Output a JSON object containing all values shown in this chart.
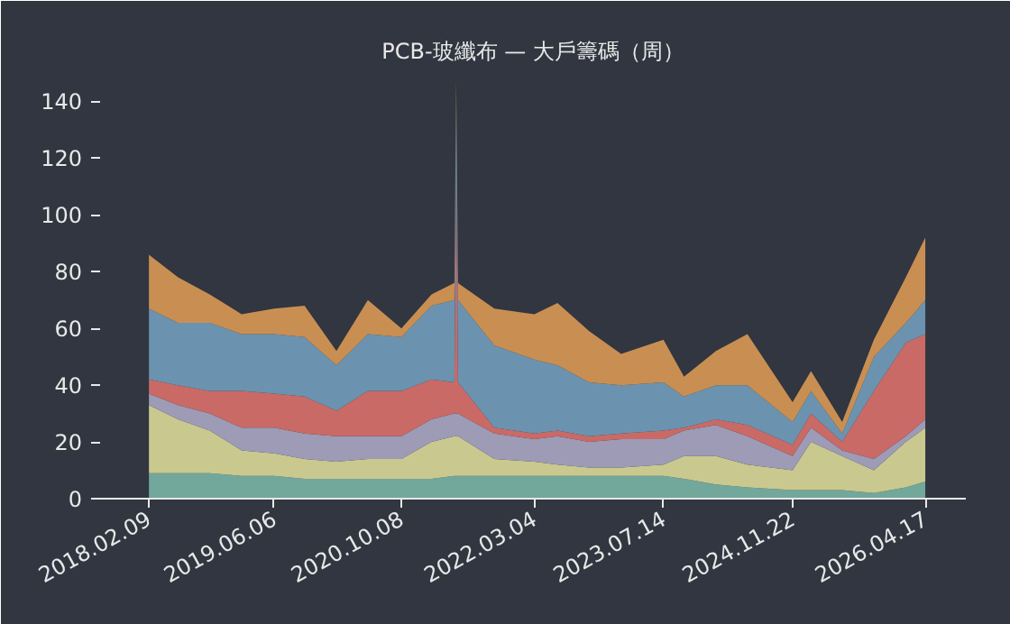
{
  "chart_data": {
    "type": "area",
    "stacked": true,
    "title": "PCB-玻纖布 — 大戶籌碼（周）",
    "x": [
      "2018-02-09",
      "2018-06-01",
      "2018-10-01",
      "2019-02-01",
      "2019-06-06",
      "2019-10-01",
      "2020-02-01",
      "2020-06-01",
      "2020-10-08",
      "2021-02-01",
      "2021-04-30",
      "2021-05-07",
      "2021-05-14",
      "2021-10-01",
      "2022-03-04",
      "2022-06-01",
      "2022-10-01",
      "2023-02-01",
      "2023-07-14",
      "2023-10-01",
      "2024-02-01",
      "2024-06-01",
      "2024-11-22",
      "2025-02-01",
      "2025-06-01",
      "2025-10-01",
      "2026-02-01",
      "2026-04-17"
    ],
    "series": [
      {
        "color": "#72a79c",
        "values": [
          9,
          9,
          9,
          8,
          8,
          7,
          7,
          7,
          7,
          7,
          8,
          8,
          8,
          8,
          8,
          8,
          8,
          8,
          8,
          7,
          5,
          4,
          3,
          3,
          3,
          2,
          4,
          6
        ]
      },
      {
        "color": "#c9c98f",
        "values": [
          24,
          19,
          15,
          9,
          8,
          7,
          6,
          7,
          7,
          13,
          14,
          14,
          14,
          6,
          5,
          4,
          3,
          3,
          4,
          8,
          10,
          8,
          7,
          17,
          12,
          8,
          16,
          19
        ]
      },
      {
        "color": "#9d9bb6",
        "values": [
          4,
          5,
          6,
          8,
          9,
          9,
          9,
          8,
          8,
          8,
          8,
          8,
          8,
          9,
          8,
          10,
          9,
          10,
          9,
          9,
          11,
          10,
          5,
          5,
          2,
          4,
          2,
          3
        ]
      },
      {
        "color": "#c96a66",
        "values": [
          5,
          7,
          8,
          13,
          12,
          13,
          9,
          16,
          16,
          14,
          11,
          85,
          11,
          2,
          2,
          2,
          2,
          2,
          3,
          1,
          2,
          4,
          4,
          5,
          3,
          24,
          33,
          30
        ]
      },
      {
        "color": "#6b93b0",
        "values": [
          25,
          22,
          24,
          20,
          21,
          21,
          16,
          20,
          19,
          26,
          29,
          26,
          29,
          29,
          26,
          23,
          19,
          17,
          17,
          11,
          12,
          14,
          8,
          8,
          3,
          12,
          7,
          12
        ]
      },
      {
        "color": "#c98f52",
        "values": [
          19,
          16,
          10,
          7,
          9,
          11,
          5,
          12,
          3,
          4,
          6,
          6,
          6,
          13,
          16,
          22,
          18,
          11,
          15,
          7,
          12,
          18,
          7,
          7,
          4,
          6,
          16,
          22
        ]
      }
    ],
    "xlim": [
      "2017-08-05",
      "2026-09-20"
    ],
    "xticks": [
      {
        "value": "2018-02-09",
        "label": "2018.02.09"
      },
      {
        "value": "2019-06-06",
        "label": "2019.06.06"
      },
      {
        "value": "2020-10-08",
        "label": "2020.10.08"
      },
      {
        "value": "2022-03-04",
        "label": "2022.03.04"
      },
      {
        "value": "2023-07-14",
        "label": "2023.07.14"
      },
      {
        "value": "2024-11-22",
        "label": "2024.11.22"
      },
      {
        "value": "2026-04-17",
        "label": "2026.04.17"
      }
    ],
    "ylim": [
      0,
      150
    ],
    "yticks": [
      0,
      20,
      40,
      60,
      80,
      100,
      120,
      140
    ]
  }
}
